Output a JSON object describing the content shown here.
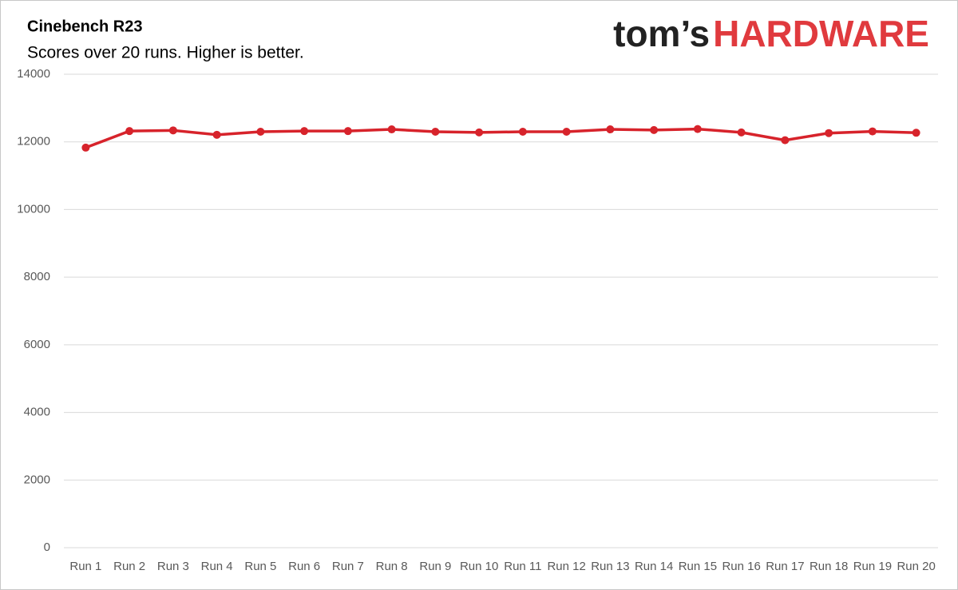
{
  "chart_data": {
    "type": "line",
    "title": "Cinebench R23",
    "subtitle": "Scores over 20 runs. Higher is better.",
    "brand": "tom’s",
    "brand_accent": "HARDWARE",
    "categories": [
      "Run 1",
      "Run 2",
      "Run 3",
      "Run 4",
      "Run 5",
      "Run 6",
      "Run 7",
      "Run 8",
      "Run 9",
      "Run 10",
      "Run 11",
      "Run 12",
      "Run 13",
      "Run 14",
      "Run 15",
      "Run 16",
      "Run 17",
      "Run 18",
      "Run 19",
      "Run 20"
    ],
    "values": [
      11830,
      12320,
      12340,
      12210,
      12300,
      12320,
      12320,
      12370,
      12300,
      12280,
      12300,
      12300,
      12370,
      12350,
      12380,
      12280,
      12050,
      12260,
      12310,
      12270
    ],
    "color": "#d7232b",
    "ylim": [
      0,
      14000
    ],
    "yticks": [
      0,
      2000,
      4000,
      6000,
      8000,
      10000,
      12000,
      14000
    ],
    "grid": true
  }
}
